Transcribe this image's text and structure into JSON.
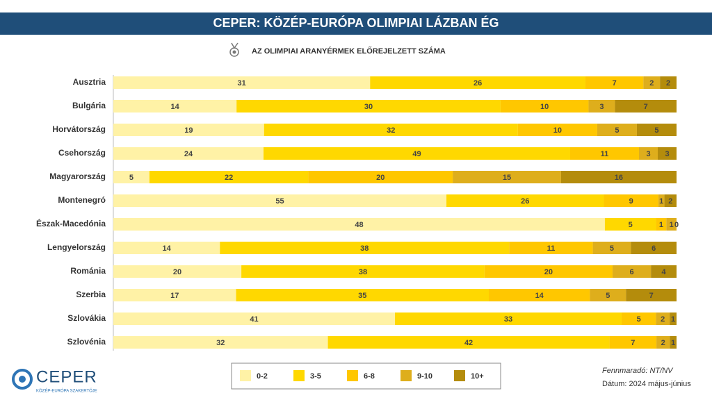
{
  "chart_data": {
    "type": "bar",
    "orientation": "horizontal",
    "title": "CEPER: KÖZÉP-EURÓPA OLIMPIAI LÁZBAN ÉG",
    "subtitle": "AZ OLIMPIAI ARANYÉRMEK ELŐREJELZETT SZÁMA",
    "categories": [
      "Ausztria",
      "Bulgária",
      "Horvátország",
      "Csehország",
      "Magyarország",
      "Montenegró",
      "Észak-Macedónia",
      "Lengyelország",
      "Románia",
      "Szerbia",
      "Szlovákia",
      "Szlovénia"
    ],
    "series": [
      {
        "name": "0-2",
        "color": "#fff2a6",
        "values": [
          31,
          14,
          19,
          24,
          5,
          55,
          48,
          14,
          20,
          17,
          41,
          32
        ]
      },
      {
        "name": "3-5",
        "color": "#ffd800",
        "values": [
          26,
          30,
          32,
          49,
          22,
          26,
          5,
          38,
          38,
          35,
          33,
          42
        ]
      },
      {
        "name": "6-8",
        "color": "#ffc700",
        "values": [
          7,
          10,
          10,
          11,
          20,
          9,
          1,
          11,
          20,
          14,
          5,
          7
        ]
      },
      {
        "name": "9-10",
        "color": "#deae1c",
        "values": [
          2,
          3,
          5,
          3,
          15,
          1,
          1,
          5,
          6,
          5,
          2,
          2
        ]
      },
      {
        "name": "10+",
        "color": "#b48c0c",
        "values": [
          2,
          7,
          5,
          3,
          16,
          2,
          0,
          6,
          4,
          7,
          1,
          1
        ]
      }
    ],
    "legend": "bottom"
  },
  "notes": [
    "Fennmaradó: NT/NV",
    "Dátum: 2024 május-június"
  ],
  "logo": {
    "name": "CEPER",
    "tagline": "KÖZÉP-EURÓPA SZAKERTŐJE"
  }
}
